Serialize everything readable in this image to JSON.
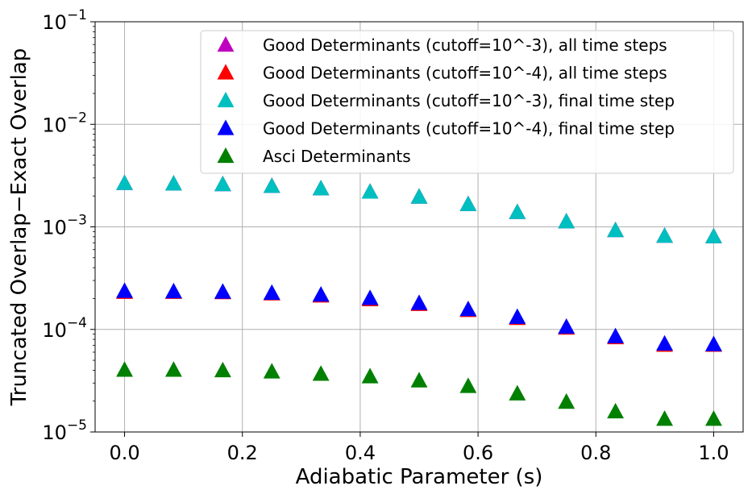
{
  "chart_data": {
    "type": "scatter",
    "title": "",
    "xlabel": "Adiabatic Parameter (s)",
    "ylabel": "Truncated Overlap−Exact Overlap",
    "yscale": "log",
    "xlim": [
      -0.05,
      1.05
    ],
    "ylim": [
      1e-05,
      0.1
    ],
    "grid": true,
    "legend_position": "top-right",
    "x_ticks": [
      {
        "value": 0.0,
        "label": "0.0"
      },
      {
        "value": 0.2,
        "label": "0.2"
      },
      {
        "value": 0.4,
        "label": "0.4"
      },
      {
        "value": 0.6,
        "label": "0.6"
      },
      {
        "value": 0.8,
        "label": "0.8"
      },
      {
        "value": 1.0,
        "label": "1.0"
      }
    ],
    "y_ticks": [
      {
        "value": 1e-05,
        "base": "10",
        "exp": "−5"
      },
      {
        "value": 0.0001,
        "base": "10",
        "exp": "−4"
      },
      {
        "value": 0.001,
        "base": "10",
        "exp": "−3"
      },
      {
        "value": 0.01,
        "base": "10",
        "exp": "−2"
      },
      {
        "value": 0.1,
        "base": "10",
        "exp": "−1"
      }
    ],
    "x": [
      0.0,
      0.0833,
      0.1667,
      0.25,
      0.3333,
      0.4167,
      0.5,
      0.5833,
      0.6667,
      0.75,
      0.8333,
      0.9167,
      1.0
    ],
    "series": [
      {
        "name": "Good Determinants (cutoff=10^-3), all time steps",
        "color": "#bf00bf",
        "marker": "triangle",
        "values": [
          0.00265,
          0.00262,
          0.00258,
          0.00248,
          0.00235,
          0.00218,
          0.00195,
          0.00165,
          0.00138,
          0.00112,
          0.00092,
          0.00081,
          0.0008
        ]
      },
      {
        "name": "Good Determinants (cutoff=10^-4), all time steps",
        "color": "#ff0000",
        "marker": "triangle",
        "values": [
          0.00023,
          0.00023,
          0.000228,
          0.000222,
          0.000212,
          0.000195,
          0.000175,
          0.000153,
          0.000128,
          0.000103,
          8.3e-05,
          7e-05,
          7e-05
        ]
      },
      {
        "name": "Good Determinants (cutoff=10^-3), final time step",
        "color": "#00bfbf",
        "marker": "triangle",
        "values": [
          0.00265,
          0.00262,
          0.00258,
          0.00248,
          0.00235,
          0.00218,
          0.00195,
          0.00165,
          0.00138,
          0.00112,
          0.00092,
          0.00081,
          0.0008
        ]
      },
      {
        "name": "Good Determinants (cutoff=10^-4), final time step",
        "color": "#0000ff",
        "marker": "triangle",
        "values": [
          0.000235,
          0.000233,
          0.000231,
          0.000225,
          0.000216,
          0.0002,
          0.000179,
          0.000156,
          0.000131,
          0.000105,
          8.5e-05,
          7.2e-05,
          7.1e-05
        ]
      },
      {
        "name": "Asci Determinants",
        "color": "#008000",
        "marker": "triangle",
        "values": [
          4e-05,
          4e-05,
          3.95e-05,
          3.85e-05,
          3.65e-05,
          3.45e-05,
          3.15e-05,
          2.78e-05,
          2.35e-05,
          1.95e-05,
          1.57e-05,
          1.33e-05,
          1.33e-05
        ]
      }
    ]
  }
}
